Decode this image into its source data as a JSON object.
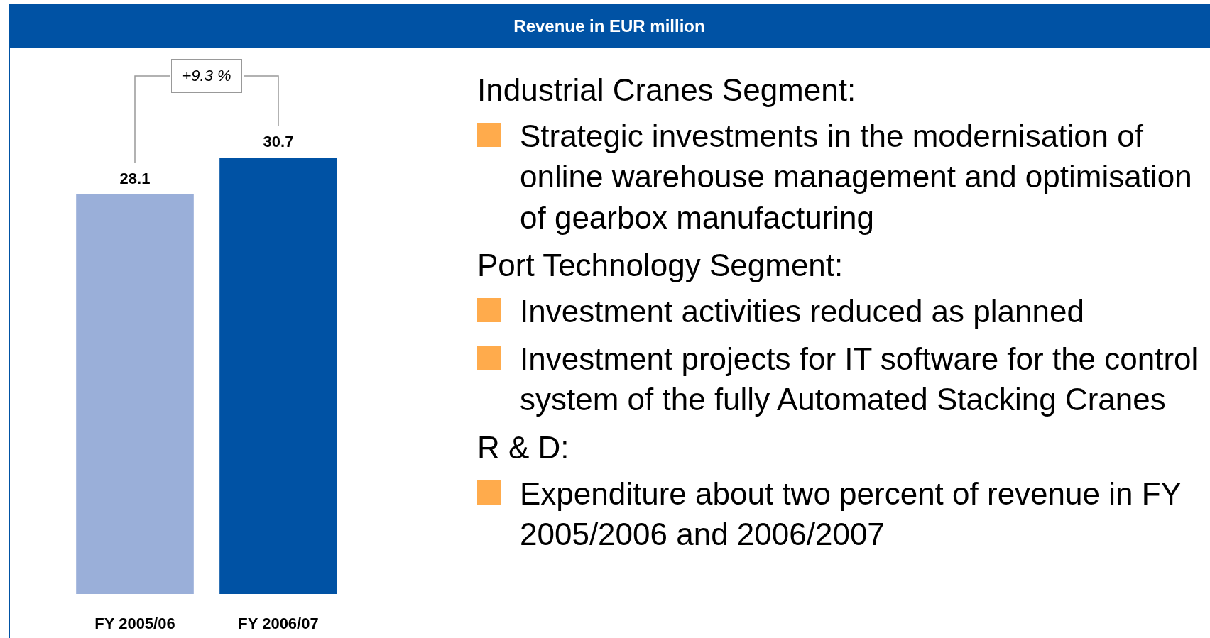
{
  "chart_data": {
    "type": "bar",
    "title": "Revenue in EUR million",
    "categories": [
      "FY 2005/06",
      "FY 2006/07"
    ],
    "values": [
      28.1,
      30.7
    ],
    "colors": [
      "#9aafd9",
      "#0052a4"
    ],
    "data_labels": true,
    "annotations": [
      "+9.3 %",
      "Industrial Cranes Segment:",
      "Strategic investments in the modernisation of online warehouse management and optimisation of gearbox manufacturing",
      "Port Technology Segment:",
      "Investment activities reduced as planned",
      "Investment projects for IT software for the control system of the fully Automated Stacking Cranes",
      "R & D:",
      "Expenditure about two percent of revenue in FY 2005/2006 and 2006/2007"
    ]
  }
}
